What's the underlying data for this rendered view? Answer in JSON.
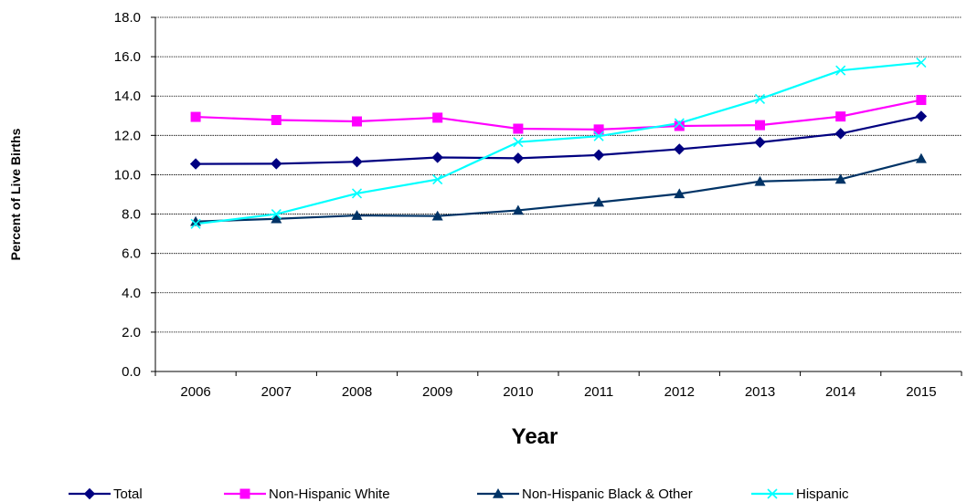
{
  "chart_data": {
    "type": "line",
    "title": "",
    "xlabel": "Year",
    "ylabel": "Percent of Live Births",
    "categories": [
      "2006",
      "2007",
      "2008",
      "2009",
      "2010",
      "2011",
      "2012",
      "2013",
      "2014",
      "2015"
    ],
    "ylim": [
      0,
      18
    ],
    "yticks": [
      "0.0",
      "2.0",
      "4.0",
      "6.0",
      "8.0",
      "10.0",
      "12.0",
      "14.0",
      "16.0",
      "18.0"
    ],
    "grid": "horizontal",
    "legend_position": "bottom",
    "series": [
      {
        "name": "Total",
        "color": "#000080",
        "marker": "diamond",
        "values": [
          10.55,
          10.56,
          10.66,
          10.88,
          10.84,
          11.0,
          11.3,
          11.65,
          12.09,
          12.97
        ]
      },
      {
        "name": "Non-Hispanic White",
        "color": "#ff00ff",
        "marker": "square",
        "values": [
          12.94,
          12.78,
          12.71,
          12.9,
          12.34,
          12.3,
          12.48,
          12.52,
          12.96,
          13.8
        ]
      },
      {
        "name": "Non-Hispanic Black & Other",
        "color": "#003366",
        "marker": "triangle",
        "values": [
          7.62,
          7.76,
          7.93,
          7.9,
          8.19,
          8.6,
          9.03,
          9.66,
          9.77,
          10.82
        ]
      },
      {
        "name": "Hispanic",
        "color": "#00ffff",
        "marker": "x",
        "values": [
          7.5,
          8.0,
          9.05,
          9.76,
          11.66,
          11.96,
          12.62,
          13.85,
          15.3,
          15.7
        ]
      }
    ]
  }
}
